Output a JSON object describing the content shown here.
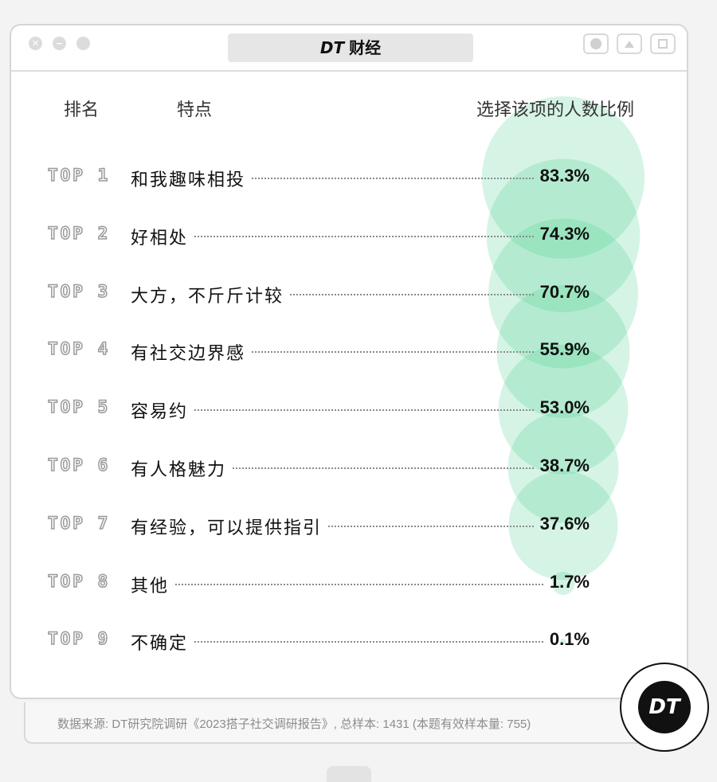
{
  "window": {
    "title_logo": "DT",
    "title_text": "财经",
    "close_glyph": "✕",
    "min_glyph": "−"
  },
  "headers": {
    "rank": "排名",
    "feature": "特点",
    "share": "选择该项的人数比例"
  },
  "chart_data": {
    "type": "bubble",
    "unit": "%",
    "categories": [
      "和我趣味相投",
      "好相处",
      "大方，不斤斤计较",
      "有社交边界感",
      "容易约",
      "有人格魅力",
      "有经验，可以提供指引",
      "其他",
      "不确定"
    ],
    "ranks": [
      "TOP 1",
      "TOP 2",
      "TOP 3",
      "TOP 4",
      "TOP 5",
      "TOP 6",
      "TOP 7",
      "TOP 8",
      "TOP 9"
    ],
    "values": [
      83.3,
      74.3,
      70.7,
      55.9,
      53.0,
      38.7,
      37.6,
      1.7,
      0.1
    ],
    "labels": [
      "83.3%",
      "74.3%",
      "70.7%",
      "55.9%",
      "53.0%",
      "38.7%",
      "37.6%",
      "1.7%",
      "0.1%"
    ],
    "bubble_color": "#3ecb8a"
  },
  "footer": {
    "source": "数据来源: DT研究院调研《2023搭子社交调研报告》, 总样本: 1431 (本题有效样本量: 755)"
  },
  "badge": {
    "text": "DT"
  }
}
